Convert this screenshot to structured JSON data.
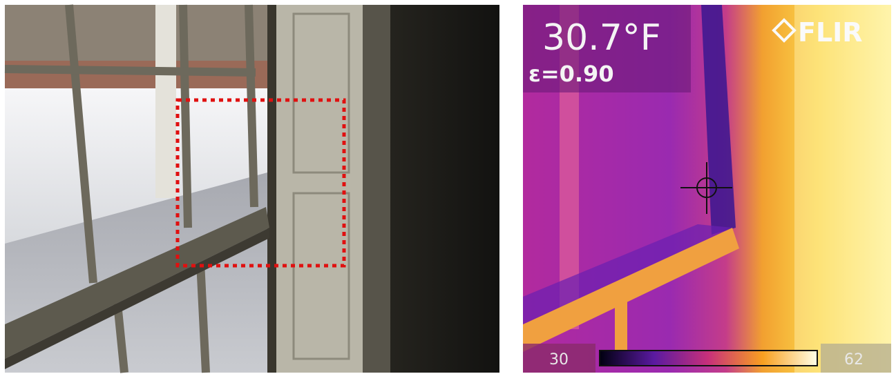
{
  "thermal": {
    "temperature": "30.7°F",
    "emissivity": "ε=0.90",
    "brand": "FLIR",
    "scale_min": "30",
    "scale_max": "62"
  }
}
